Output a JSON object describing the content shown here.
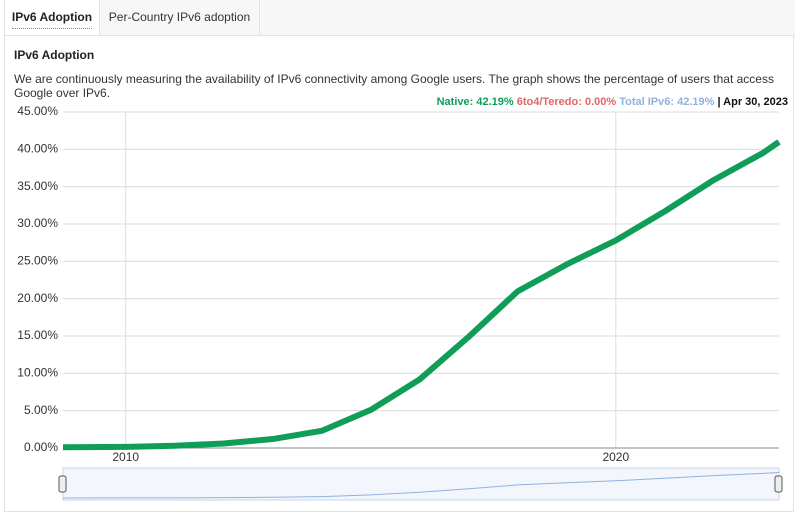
{
  "tabs": [
    "IPv6 Adoption",
    "Per-Country IPv6 adoption"
  ],
  "heading": "IPv6 Adoption",
  "description": "We are continuously measuring the availability of IPv6 connectivity among Google users. The graph shows the percentage of users that access Google over IPv6.",
  "legend": {
    "native": "Native: 42.19%",
    "teredo": "6to4/Teredo: 0.00%",
    "total": "Total IPv6: 42.19%",
    "date": "| Apr 30, 2023"
  },
  "chart_data": {
    "type": "line",
    "x": [
      2008.72,
      2010,
      2011,
      2012,
      2012.5,
      2013,
      2014,
      2015,
      2016,
      2017,
      2018,
      2019,
      2020,
      2021,
      2022,
      2023,
      2023.33
    ],
    "series": [
      {
        "name": "Native",
        "color": "#0f9d58",
        "values": [
          0.1,
          0.15,
          0.3,
          0.6,
          0.9,
          1.2,
          2.3,
          5.1,
          9.2,
          14.9,
          21,
          24.6,
          27.8,
          31.7,
          35.9,
          39.5,
          41
        ]
      }
    ],
    "xlim": [
      2008.72,
      2023.33
    ],
    "xticks": [
      2010,
      2020
    ],
    "ylim": [
      0,
      45
    ],
    "yticks": [
      {
        "value": 0,
        "label": "0.00%"
      },
      {
        "value": 5,
        "label": "5.00%"
      },
      {
        "value": 10,
        "label": "10.00%"
      },
      {
        "value": 15,
        "label": "15.00%"
      },
      {
        "value": 20,
        "label": "20.00%"
      },
      {
        "value": 25,
        "label": "25.00%"
      },
      {
        "value": 30,
        "label": "30.00%"
      },
      {
        "value": 35,
        "label": "35.00%"
      },
      {
        "value": 40,
        "label": "40.00%"
      },
      {
        "value": 45,
        "label": "45.00%"
      }
    ],
    "grid": true
  }
}
